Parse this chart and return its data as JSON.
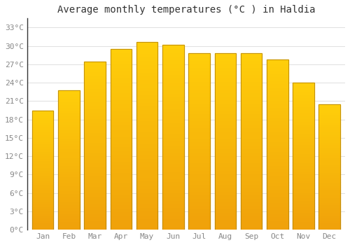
{
  "title": "Average monthly temperatures (°C ) in Haldia",
  "months": [
    "Jan",
    "Feb",
    "Mar",
    "Apr",
    "May",
    "Jun",
    "Jul",
    "Aug",
    "Sep",
    "Oct",
    "Nov",
    "Dec"
  ],
  "temperatures": [
    19.5,
    22.8,
    27.5,
    29.5,
    30.7,
    30.2,
    28.8,
    28.8,
    28.8,
    27.8,
    24.0,
    20.5
  ],
  "bar_color_top": "#FFD060",
  "bar_color_bottom": "#F0A010",
  "bar_edge_color": "#B8860B",
  "background_color": "#FFFFFF",
  "grid_color": "#E0E0E0",
  "yticks": [
    0,
    3,
    6,
    9,
    12,
    15,
    18,
    21,
    24,
    27,
    30,
    33
  ],
  "ylim": [
    0,
    34.5
  ],
  "title_fontsize": 10,
  "tick_fontsize": 8,
  "tick_color": "#888888",
  "spine_color": "#333333"
}
